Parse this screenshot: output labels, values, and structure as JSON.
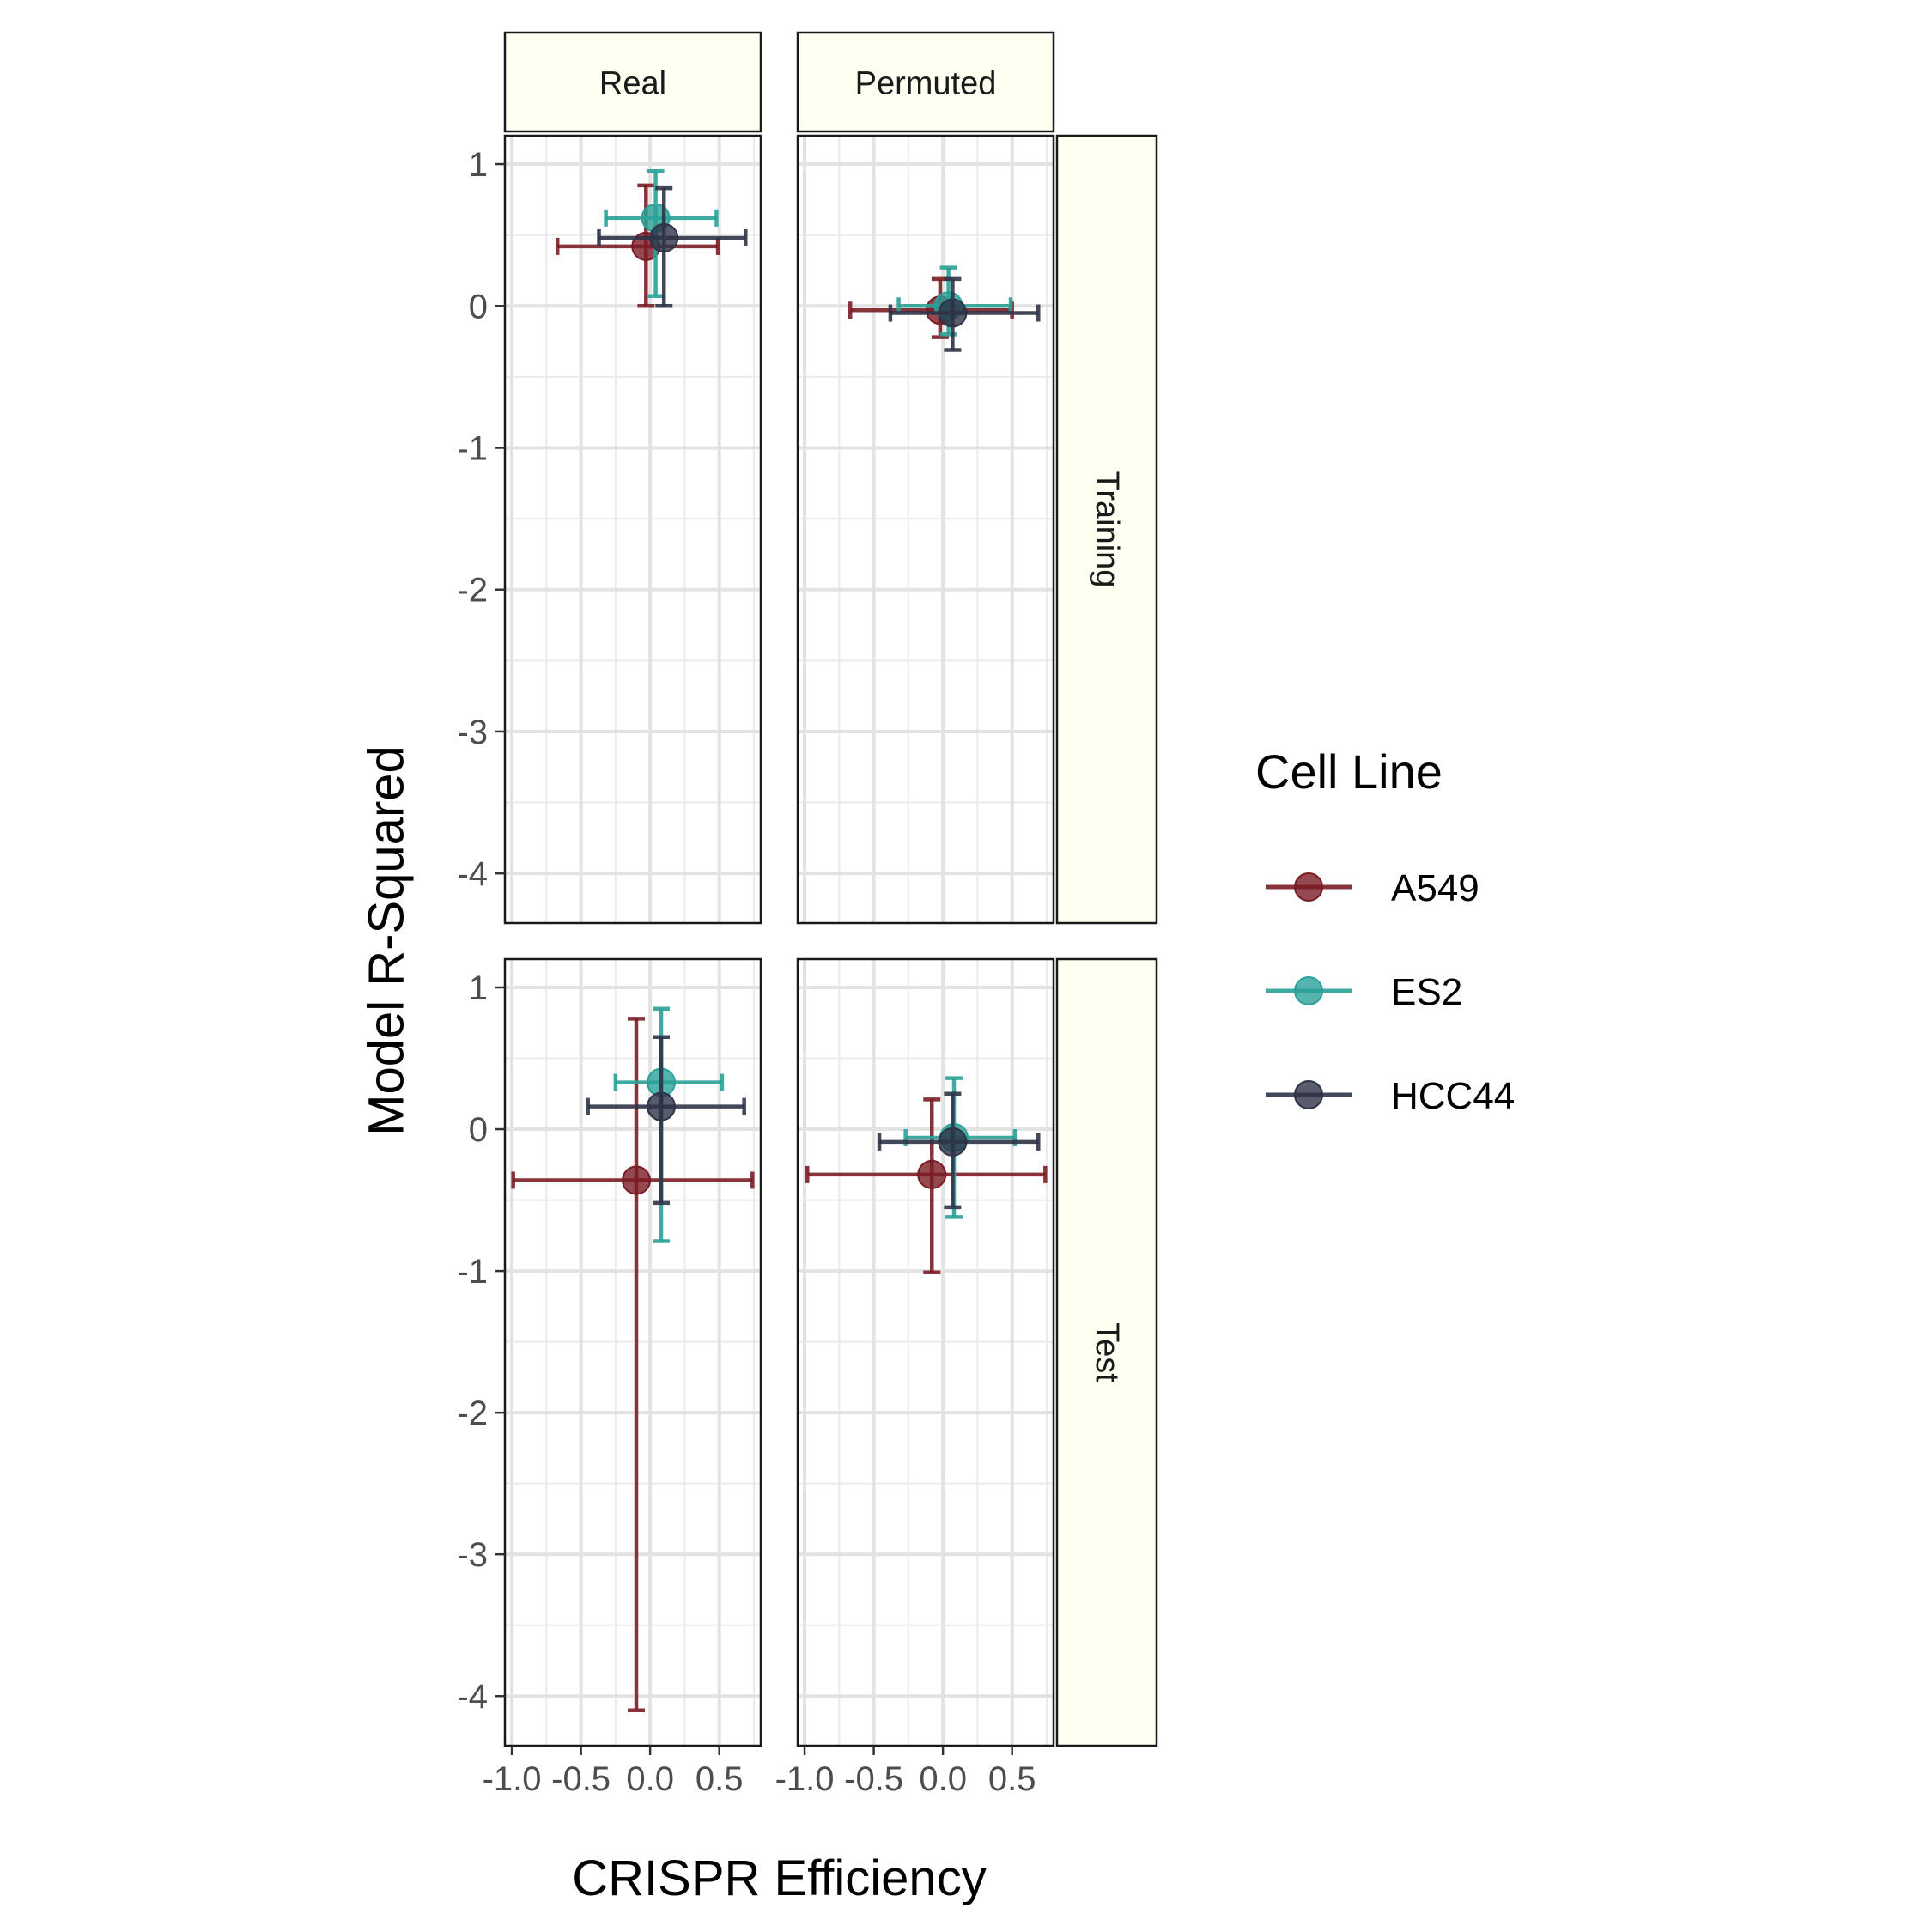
{
  "chart_data": {
    "type": "scatter",
    "xlabel": "CRISPR Efficiency",
    "ylabel": "Model R-Squared",
    "xlim": [
      -1.05,
      0.8
    ],
    "ylim": [
      -4.35,
      1.2
    ],
    "x_ticks": [
      -1.0,
      -0.5,
      0.0,
      0.5
    ],
    "x_tick_labels": [
      "-1.0",
      "-0.5",
      "0.0",
      "0.5"
    ],
    "y_ticks": [
      1,
      0,
      -1,
      -2,
      -3,
      -4
    ],
    "y_tick_labels": [
      "1",
      "0",
      "-1",
      "-2",
      "-3",
      "-4"
    ],
    "grid": true,
    "facet_cols": [
      "Real",
      "Permuted"
    ],
    "facet_rows": [
      "Training",
      "Test"
    ],
    "legend": {
      "title": "Cell Line",
      "position": "right",
      "items": [
        {
          "name": "A549",
          "color": "#7b1c24"
        },
        {
          "name": "ES2",
          "color": "#2aa198"
        },
        {
          "name": "HCC44",
          "color": "#2e3347"
        }
      ]
    },
    "series": [
      {
        "name": "A549",
        "color": "#7b1c24",
        "points": [
          {
            "col": "Real",
            "row": "Training",
            "x": -0.03,
            "y": 0.42,
            "xmin": -0.67,
            "xmax": 0.49,
            "ymin": 0.0,
            "ymax": 0.85
          },
          {
            "col": "Permuted",
            "row": "Training",
            "x": -0.02,
            "y": -0.03,
            "xmin": -0.67,
            "xmax": 0.5,
            "ymin": -0.22,
            "ymax": 0.19
          },
          {
            "col": "Real",
            "row": "Test",
            "x": -0.1,
            "y": -0.36,
            "xmin": -0.99,
            "xmax": 0.74,
            "ymin": -4.1,
            "ymax": 0.78
          },
          {
            "col": "Permuted",
            "row": "Test",
            "x": -0.08,
            "y": -0.32,
            "xmin": -0.98,
            "xmax": 0.74,
            "ymin": -1.01,
            "ymax": 0.21
          }
        ]
      },
      {
        "name": "ES2",
        "color": "#2aa198",
        "points": [
          {
            "col": "Real",
            "row": "Training",
            "x": 0.04,
            "y": 0.62,
            "xmin": -0.32,
            "xmax": 0.48,
            "ymin": 0.07,
            "ymax": 0.95
          },
          {
            "col": "Permuted",
            "row": "Training",
            "x": 0.04,
            "y": 0.0,
            "xmin": -0.32,
            "xmax": 0.49,
            "ymin": -0.2,
            "ymax": 0.27
          },
          {
            "col": "Real",
            "row": "Test",
            "x": 0.08,
            "y": 0.33,
            "xmin": -0.25,
            "xmax": 0.52,
            "ymin": -0.79,
            "ymax": 0.85
          },
          {
            "col": "Permuted",
            "row": "Test",
            "x": 0.08,
            "y": -0.06,
            "xmin": -0.27,
            "xmax": 0.52,
            "ymin": -0.62,
            "ymax": 0.36
          }
        ]
      },
      {
        "name": "HCC44",
        "color": "#2e3347",
        "points": [
          {
            "col": "Real",
            "row": "Training",
            "x": 0.1,
            "y": 0.48,
            "xmin": -0.37,
            "xmax": 0.69,
            "ymin": 0.0,
            "ymax": 0.83
          },
          {
            "col": "Permuted",
            "row": "Training",
            "x": 0.07,
            "y": -0.05,
            "xmin": -0.38,
            "xmax": 0.69,
            "ymin": -0.31,
            "ymax": 0.19
          },
          {
            "col": "Real",
            "row": "Test",
            "x": 0.08,
            "y": 0.16,
            "xmin": -0.45,
            "xmax": 0.68,
            "ymin": -0.52,
            "ymax": 0.65
          },
          {
            "col": "Permuted",
            "row": "Test",
            "x": 0.07,
            "y": -0.09,
            "xmin": -0.46,
            "xmax": 0.69,
            "ymin": -0.55,
            "ymax": 0.25
          }
        ]
      }
    ]
  }
}
